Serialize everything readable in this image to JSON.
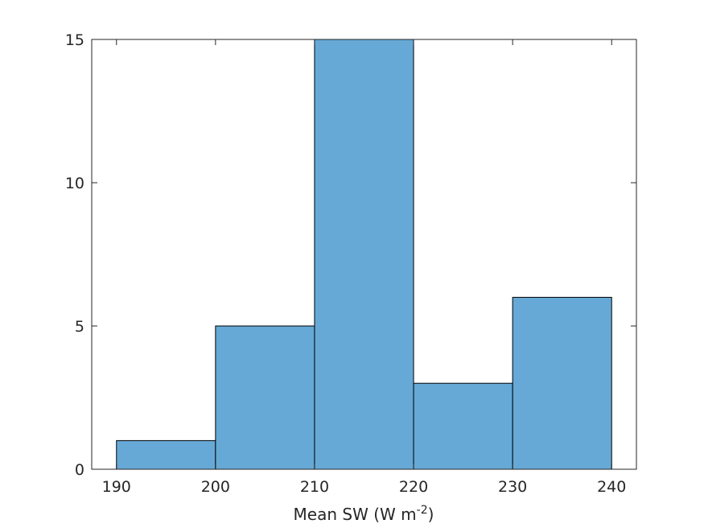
{
  "chart_data": {
    "type": "bar",
    "subtype": "histogram",
    "title": "",
    "ylabel": "",
    "xlabel": {
      "main": "Mean SW (W m",
      "superscript": "-2",
      "closing": ")"
    },
    "bins": [
      {
        "x0": 190,
        "x1": 200,
        "count": 1
      },
      {
        "x0": 200,
        "x1": 210,
        "count": 5
      },
      {
        "x0": 210,
        "x1": 220,
        "count": 15
      },
      {
        "x0": 220,
        "x1": 230,
        "count": 3
      },
      {
        "x0": 230,
        "x1": 240,
        "count": 6
      }
    ],
    "xlim": [
      187.5,
      242.5
    ],
    "ylim": [
      0,
      15
    ],
    "xticks": [
      190,
      200,
      210,
      220,
      230,
      240
    ],
    "yticks": [
      0,
      5,
      10,
      15
    ],
    "grid": false,
    "legend": "none",
    "bar_color": "#66a9d6",
    "edge_color": "#000000",
    "axis_color": "#262626"
  }
}
